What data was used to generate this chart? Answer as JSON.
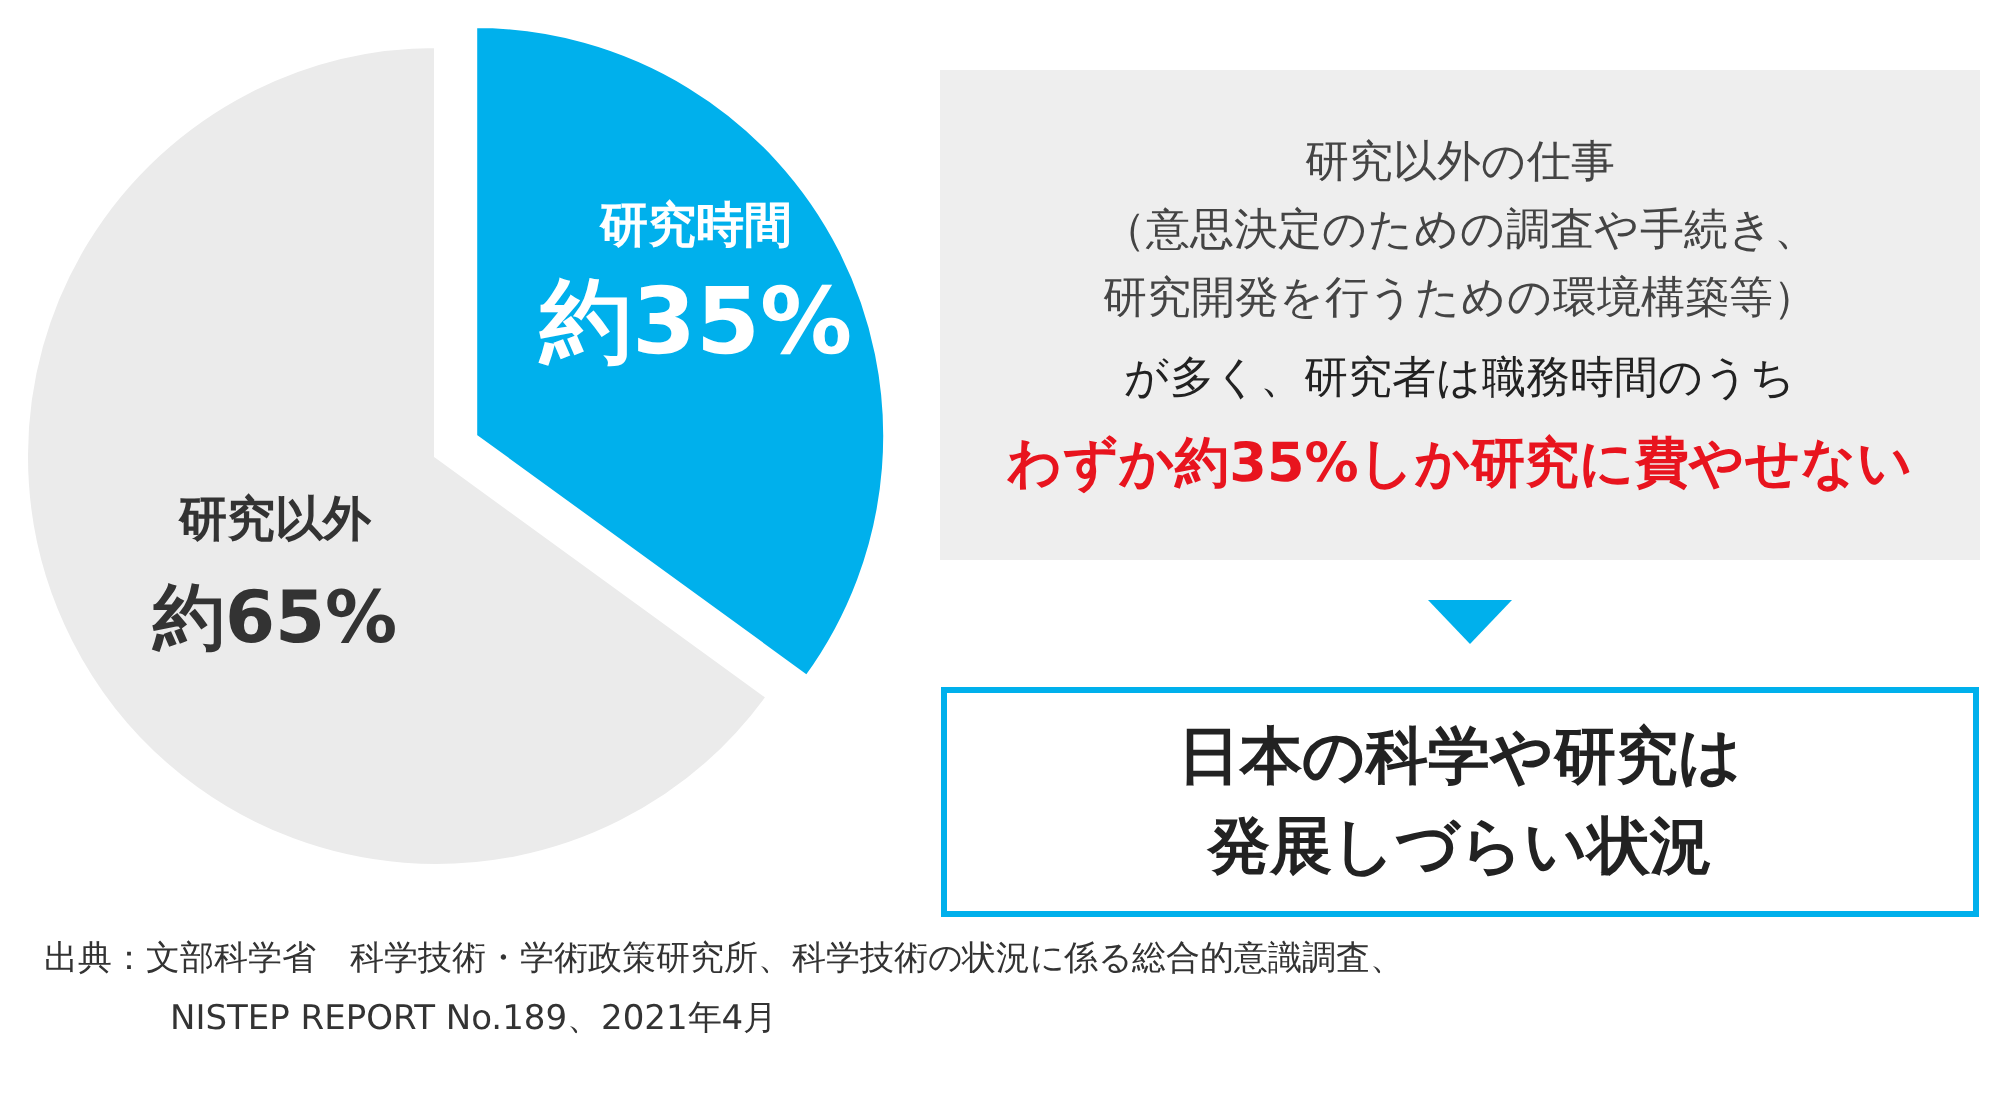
{
  "chart_data": {
    "type": "pie",
    "categories": [
      "研究時間",
      "研究以外"
    ],
    "values": [
      35,
      65
    ],
    "colors": [
      "#00b0ec",
      "#ebebeb"
    ],
    "value_labels": [
      "約35%",
      "約65%"
    ],
    "annotations": [
      "研究以外の仕事",
      "（意思決定のための調査や手続き、",
      "研究開発を行うための環境構築等）",
      "が多く、研究者は職務時間のうち",
      "わずか約35%しか研究に費やせない",
      "日本の科学や研究は",
      "発展しづらい状況",
      "出典：文部科学省　科学技術・学術政策研究所、科学技術の状況に係る総合的意識調査、",
      "NISTEP REPORT No.189、2021年4月"
    ]
  }
}
